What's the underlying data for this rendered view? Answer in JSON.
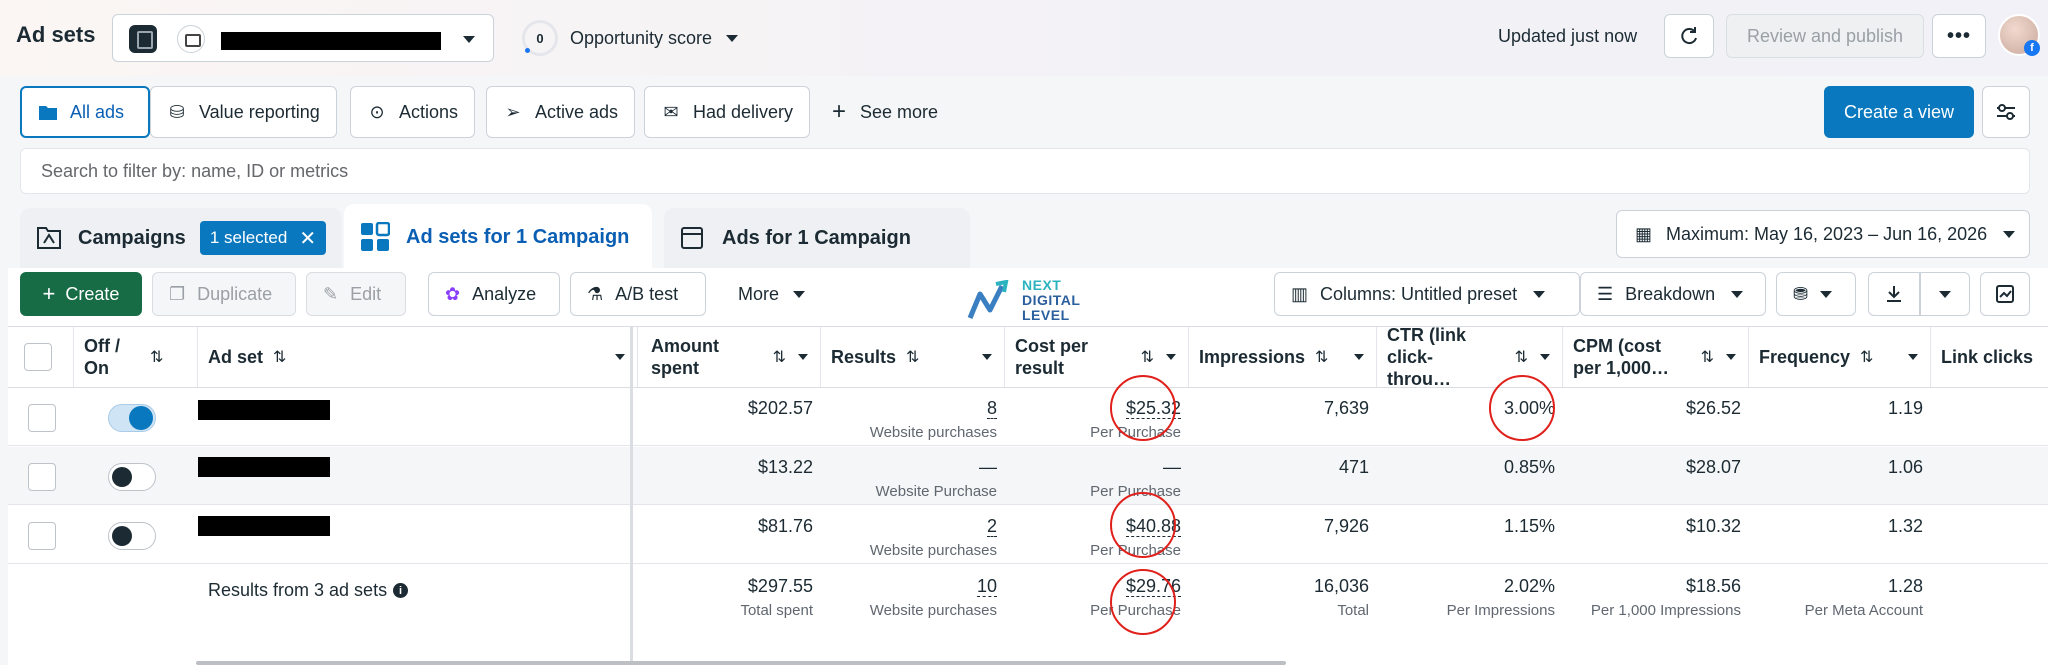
{
  "header": {
    "title": "Ad sets",
    "opportunity_score": "0",
    "opportunity_label": "Opportunity score",
    "updated": "Updated just now",
    "review_publish": "Review and publish",
    "more": "•••",
    "fb_badge": "f"
  },
  "views": {
    "items": [
      "All ads",
      "Value reporting",
      "Actions",
      "Active ads",
      "Had delivery"
    ],
    "see_more": "See more",
    "create_view": "Create a view"
  },
  "search": {
    "placeholder": "Search to filter by: name, ID or metrics"
  },
  "tabs": {
    "campaigns": "Campaigns",
    "selected_chip": "1 selected",
    "adsets": "Ad sets for 1 Campaign",
    "ads": "Ads for 1 Campaign"
  },
  "date_range": "Maximum: May 16, 2023 – Jun 16, 2026",
  "toolbar": {
    "create": "Create",
    "duplicate": "Duplicate",
    "edit": "Edit",
    "analyze": "Analyze",
    "ab_test": "A/B test",
    "more": "More",
    "columns": "Columns: Untitled preset",
    "breakdown": "Breakdown"
  },
  "logo": {
    "lines": [
      "NEXT",
      "DIGITAL",
      "LEVEL"
    ]
  },
  "columns": {
    "onoff": "Off / On",
    "adset": "Ad set",
    "amount": "Amount spent",
    "results": "Results",
    "cpr": "Cost per result",
    "impressions": "Impressions",
    "ctr": "CTR (link click-throu…",
    "cpm": "CPM (cost per 1,000…",
    "frequency": "Frequency",
    "link_clicks": "Link clicks"
  },
  "rows": [
    {
      "on": true,
      "amount": "$202.57",
      "results": "8",
      "results_sub": "Website purchases",
      "cpr": "$25.32",
      "cpr_sub": "Per Purchase",
      "impressions": "7,639",
      "ctr": "3.00%",
      "cpm": "$26.52",
      "frequency": "1.19"
    },
    {
      "on": false,
      "amount": "$13.22",
      "results": "—",
      "results_sub": "Website Purchase",
      "cpr": "—",
      "cpr_sub": "Per Purchase",
      "impressions": "471",
      "ctr": "0.85%",
      "cpm": "$28.07",
      "frequency": "1.06"
    },
    {
      "on": false,
      "amount": "$81.76",
      "results": "2",
      "results_sub": "Website purchases",
      "cpr": "$40.88",
      "cpr_sub": "Per Purchase",
      "impressions": "7,926",
      "ctr": "1.15%",
      "cpm": "$10.32",
      "frequency": "1.32"
    }
  ],
  "totals": {
    "label": "Results from 3 ad sets",
    "amount": "$297.55",
    "amount_sub": "Total spent",
    "results": "10",
    "results_sub": "Website purchases",
    "cpr": "$29.76",
    "cpr_sub": "Per Purchase",
    "impressions": "16,036",
    "impressions_sub": "Total",
    "ctr": "2.02%",
    "ctr_sub": "Per Impressions",
    "cpm": "$18.56",
    "cpm_sub": "Per 1,000 Impressions",
    "frequency": "1.28",
    "frequency_sub": "Per Meta Account"
  },
  "colors": {
    "accent": "#0a78be",
    "create_green": "#176c46",
    "annotation_red": "#e0201b"
  }
}
